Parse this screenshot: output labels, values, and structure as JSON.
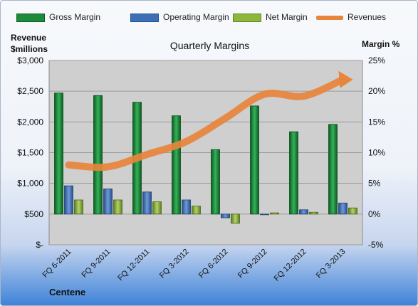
{
  "chart_data": {
    "type": "bar",
    "title": "Quarterly Margins",
    "company": "Centene",
    "left_axis": {
      "label_line1": "Revenue",
      "label_line2": "$millions",
      "range": [
        0,
        3000
      ],
      "ticks": [
        0,
        500,
        1000,
        1500,
        2000,
        2500,
        3000
      ],
      "tick_labels": [
        "$-",
        "$500",
        "$1,000",
        "$1,500",
        "$2,000",
        "$2,500",
        "$3,000"
      ]
    },
    "right_axis": {
      "label": "Margin %",
      "range": [
        -5,
        25
      ],
      "ticks": [
        -5,
        0,
        5,
        10,
        15,
        20,
        25
      ],
      "tick_labels": [
        "-5%",
        "0%",
        "5%",
        "10%",
        "15%",
        "20%",
        "25%"
      ]
    },
    "categories": [
      "FQ 6-2011",
      "FQ 9-2011",
      "FQ 12-2011",
      "FQ 3-2012",
      "FQ 6-2012",
      "FQ 9-2012",
      "FQ 12-2012",
      "FQ 3-2013"
    ],
    "series": [
      {
        "name": "Gross Margin",
        "type": "bar",
        "axis": "right",
        "color": "#1e8a3c",
        "values": [
          19.7,
          19.3,
          18.2,
          16.0,
          10.5,
          17.6,
          13.4,
          14.6
        ]
      },
      {
        "name": "Operating Margin",
        "type": "bar",
        "axis": "right",
        "color": "#3c6fb6",
        "values": [
          4.6,
          4.1,
          3.6,
          2.3,
          -0.6,
          -0.1,
          0.7,
          1.8
        ]
      },
      {
        "name": "Net Margin",
        "type": "bar",
        "axis": "right",
        "color": "#8cb63c",
        "values": [
          2.3,
          2.3,
          2.0,
          1.3,
          -1.5,
          0.2,
          0.3,
          1.0
        ]
      },
      {
        "name": "Revenues",
        "type": "line",
        "axis": "left",
        "color": "#e8843c",
        "values": [
          1300,
          1270,
          1470,
          1680,
          2060,
          2450,
          2420,
          2690
        ]
      }
    ],
    "grid": true,
    "legend_position": "top"
  }
}
